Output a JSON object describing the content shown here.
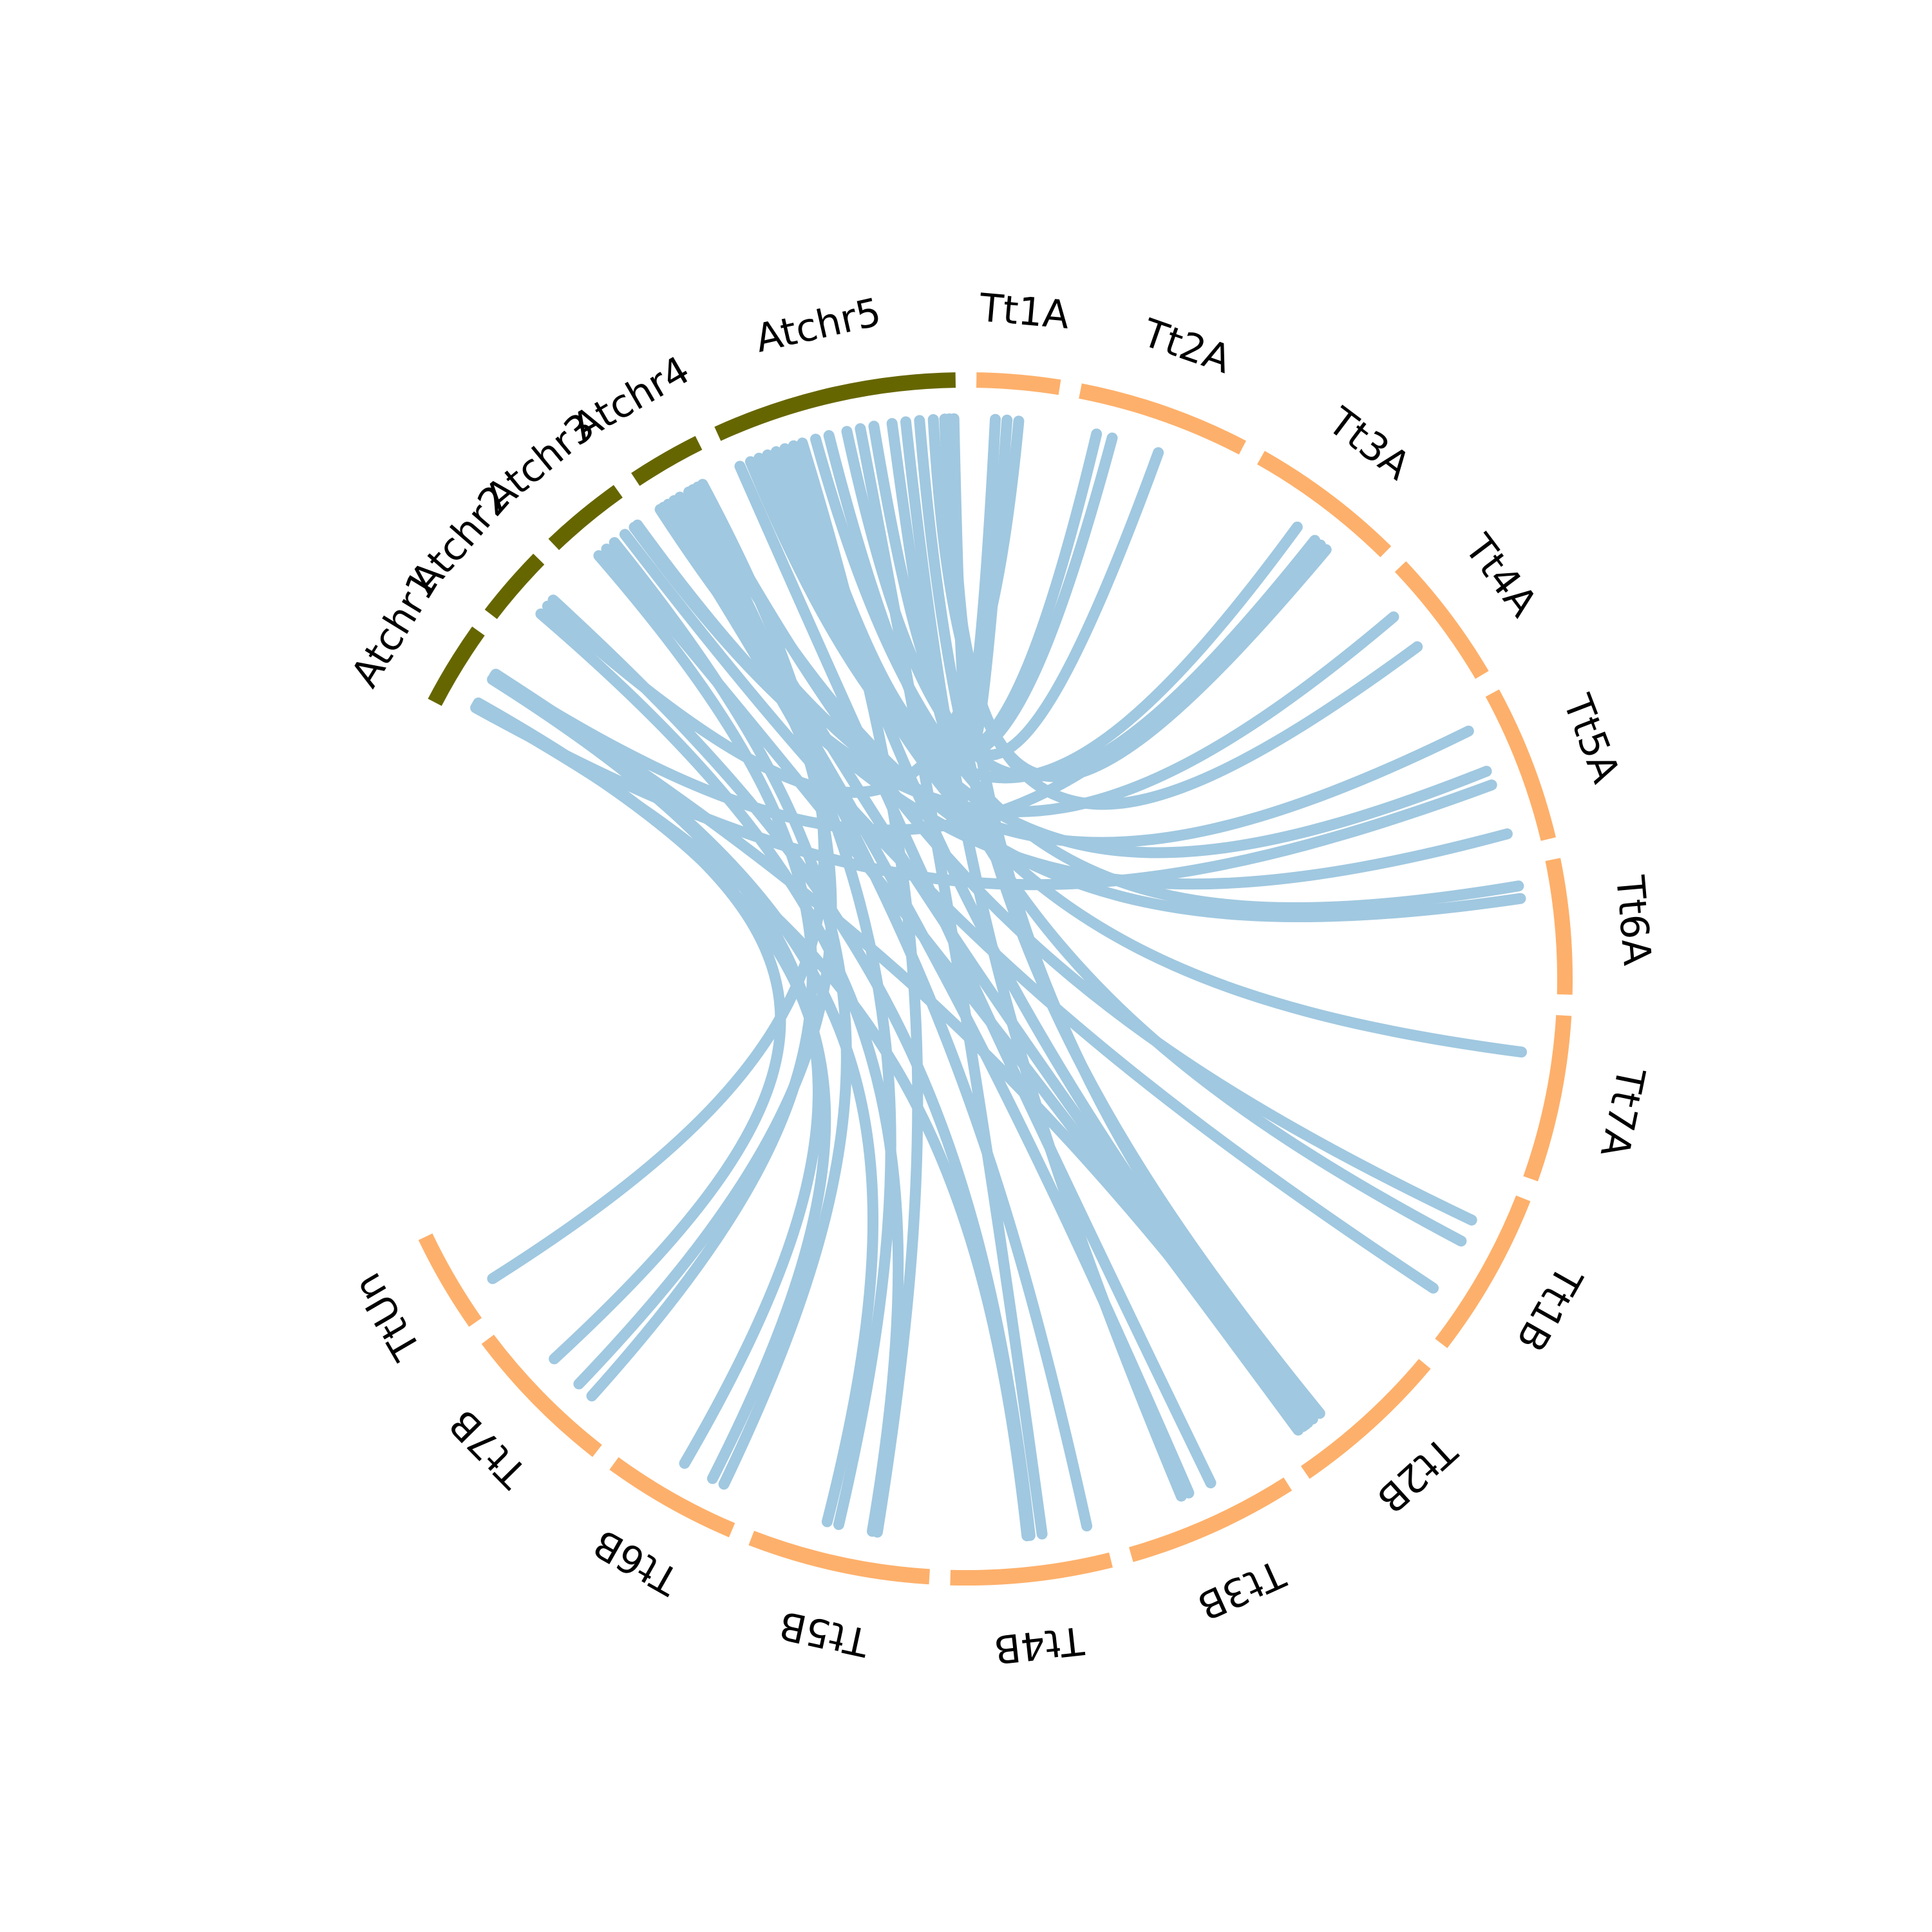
{
  "colors": {
    "arabidopsis": "#666600",
    "triticum": "#fdb06b",
    "link": "#a0c8e0",
    "background": "#ffffff"
  },
  "chromosomes": [
    {
      "id": "atchr1",
      "label": "Atchr1",
      "group": "arabidopsis"
    },
    {
      "id": "atchr2",
      "label": "Atchr2",
      "group": "arabidopsis"
    },
    {
      "id": "atchr3",
      "label": "Atchr3",
      "group": "arabidopsis"
    },
    {
      "id": "atchr4",
      "label": "Atchr4",
      "group": "arabidopsis"
    },
    {
      "id": "atchr5",
      "label": "Atchr5",
      "group": "arabidopsis"
    },
    {
      "id": "tt1a",
      "label": "Tt1A",
      "group": "triticum"
    },
    {
      "id": "tt2a",
      "label": "Tt2A",
      "group": "triticum"
    },
    {
      "id": "tt3a",
      "label": "Tt3A",
      "group": "triticum"
    },
    {
      "id": "tt4a",
      "label": "Tt4A",
      "group": "triticum"
    },
    {
      "id": "tt5a",
      "label": "Tt5A",
      "group": "triticum"
    },
    {
      "id": "tt6a",
      "label": "Tt6A",
      "group": "triticum"
    },
    {
      "id": "tt7a",
      "label": "Tt7A",
      "group": "triticum"
    },
    {
      "id": "tt1b",
      "label": "Tt1B",
      "group": "triticum"
    },
    {
      "id": "tt2b",
      "label": "Tt2B",
      "group": "triticum"
    },
    {
      "id": "tt3b",
      "label": "Tt3B",
      "group": "triticum"
    },
    {
      "id": "tt4b",
      "label": "Tt4B",
      "group": "triticum"
    },
    {
      "id": "tt5b",
      "label": "Tt5B",
      "group": "triticum"
    },
    {
      "id": "tt6b",
      "label": "Tt6B",
      "group": "triticum"
    },
    {
      "id": "tt7b",
      "label": "Tt7B",
      "group": "triticum"
    },
    {
      "id": "ttun",
      "label": "TtUn",
      "group": "triticum"
    }
  ],
  "links": [
    [
      "atchr1",
      0.25,
      "tt7b",
      0.62
    ],
    [
      "atchr1",
      0.22,
      "tt6b",
      0.3
    ],
    [
      "atchr1",
      0.18,
      "tt5a",
      0.55
    ],
    [
      "atchr1",
      0.2,
      "tt4b",
      0.5
    ],
    [
      "atchr1",
      0.6,
      "tt6b",
      0.55
    ],
    [
      "atchr1",
      0.64,
      "tt5b",
      0.62
    ],
    [
      "atchr1",
      0.66,
      "tt3a",
      0.65
    ],
    [
      "atchr1",
      0.68,
      "tt2b",
      0.84
    ],
    [
      "atchr2",
      0.45,
      "tt5b",
      0.35
    ],
    [
      "atchr2",
      0.6,
      "tt1a",
      0.55
    ],
    [
      "atchr2",
      0.72,
      "tt4b",
      0.48
    ],
    [
      "atchr3",
      0.32,
      "tt7b",
      0.26
    ],
    [
      "atchr3",
      0.45,
      "tt2b",
      0.88
    ],
    [
      "atchr3",
      0.58,
      "tt6b",
      0.2
    ],
    [
      "atchr3",
      0.75,
      "tt1b",
      0.75
    ],
    [
      "atchr3",
      0.9,
      "tt4a",
      0.25
    ],
    [
      "atchr3",
      0.95,
      "tt5a",
      0.9
    ],
    [
      "atchr4",
      0.06,
      "tt5a",
      0.15
    ],
    [
      "atchr4",
      0.12,
      "tt4b",
      0.1
    ],
    [
      "atchr4",
      0.2,
      "tt3b",
      0.55
    ],
    [
      "atchr4",
      0.3,
      "tt5b",
      0.55
    ],
    [
      "atchr4",
      0.4,
      "tt2b",
      0.82
    ],
    [
      "atchr4",
      0.55,
      "tt7b",
      0.38
    ],
    [
      "atchr4",
      0.62,
      "tt6a",
      0.25
    ],
    [
      "atchr4",
      0.7,
      "tt1b",
      0.25
    ],
    [
      "atchr4",
      0.78,
      "ttun",
      0.28
    ],
    [
      "atchr5",
      0.03,
      "tt3b",
      0.4
    ],
    [
      "atchr5",
      0.08,
      "tt5a",
      0.45
    ],
    [
      "atchr5",
      0.12,
      "tt3a",
      0.45
    ],
    [
      "atchr5",
      0.16,
      "tt7a",
      0.25
    ],
    [
      "atchr5",
      0.2,
      "tt2a",
      0.15
    ],
    [
      "atchr5",
      0.24,
      "tt2b",
      0.8
    ],
    [
      "atchr5",
      0.28,
      "tt2a",
      0.25
    ],
    [
      "atchr5",
      0.32,
      "tt5b",
      0.32
    ],
    [
      "atchr5",
      0.38,
      "tt6a",
      0.15
    ],
    [
      "atchr5",
      0.44,
      "tt1b",
      0.4
    ],
    [
      "atchr5",
      0.52,
      "tt3a",
      0.6
    ],
    [
      "atchr5",
      0.58,
      "tt4b",
      0.4
    ],
    [
      "atchr5",
      0.64,
      "tt2a",
      0.55
    ],
    [
      "atchr5",
      0.72,
      "tt1a",
      0.25
    ],
    [
      "atchr5",
      0.78,
      "tt3b",
      0.6
    ],
    [
      "atchr5",
      0.84,
      "tt2b",
      0.7
    ],
    [
      "atchr5",
      0.9,
      "tt4a",
      0.55
    ],
    [
      "atchr5",
      0.95,
      "tt3a",
      0.7
    ],
    [
      "atchr5",
      0.97,
      "tt2b",
      0.76
    ],
    [
      "atchr5",
      0.99,
      "tt1a",
      0.4
    ]
  ]
}
